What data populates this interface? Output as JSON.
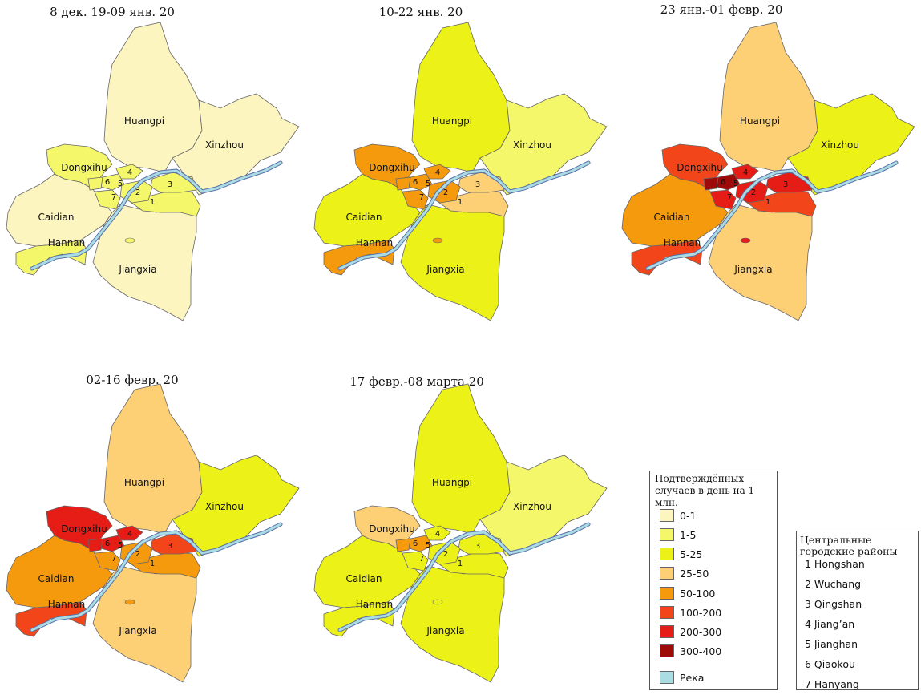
{
  "panels": [
    {
      "title": "8 дек. 19-09 янв. 20",
      "fills": {
        "huangpi": "#fdf5c0",
        "xinzhou": "#fdf5c0",
        "dongxihu": "#f4f76a",
        "caidian": "#fdf5c0",
        "hannan": "#f4f76a",
        "jiangxia": "#fdf5c0",
        "c1": "#f4f76a",
        "c2": "#f4f76a",
        "c3": "#f4f76a",
        "c4": "#f4f76a",
        "c5": "#f4f76a",
        "c6": "#f4f76a",
        "c7": "#f4f76a"
      }
    },
    {
      "title": "10-22 янв. 20",
      "fills": {
        "huangpi": "#ecf217",
        "xinzhou": "#f4f76a",
        "dongxihu": "#f59a0d",
        "caidian": "#ecf217",
        "hannan": "#f59a0d",
        "jiangxia": "#ecf217",
        "c1": "#fdd076",
        "c2": "#f59a0d",
        "c3": "#fdd076",
        "c4": "#f59a0d",
        "c5": "#f59a0d",
        "c6": "#f59a0d",
        "c7": "#f59a0d"
      }
    },
    {
      "title": "23 янв.-01 февр. 20",
      "fills": {
        "huangpi": "#fdd076",
        "xinzhou": "#ecf217",
        "dongxihu": "#f2461a",
        "caidian": "#f59a0d",
        "hannan": "#f2461a",
        "jiangxia": "#fdd076",
        "c1": "#f2461a",
        "c2": "#e61d16",
        "c3": "#e61d16",
        "c4": "#e61d16",
        "c5": "#9e0a0a",
        "c6": "#9e0a0a",
        "c7": "#e61d16"
      }
    },
    {
      "title": "02-16 февр. 20",
      "fills": {
        "huangpi": "#fdd076",
        "xinzhou": "#ecf217",
        "dongxihu": "#e61d16",
        "caidian": "#f59a0d",
        "hannan": "#f2461a",
        "jiangxia": "#fdd076",
        "c1": "#f59a0d",
        "c2": "#f59a0d",
        "c3": "#f2461a",
        "c4": "#e61d16",
        "c5": "#e61d16",
        "c6": "#e61d16",
        "c7": "#f59a0d"
      }
    },
    {
      "title": "17 февр.-08 марта 20",
      "fills": {
        "huangpi": "#ecf217",
        "xinzhou": "#f4f76a",
        "dongxihu": "#fdd076",
        "caidian": "#ecf217",
        "hannan": "#ecf217",
        "jiangxia": "#ecf217",
        "c1": "#ecf217",
        "c2": "#ecf217",
        "c3": "#ecf217",
        "c4": "#ecf217",
        "c5": "#f59a0d",
        "c6": "#f59a0d",
        "c7": "#ecf217"
      }
    }
  ],
  "region_labels": {
    "huangpi": "Huangpi",
    "xinzhou": "Xinzhou",
    "dongxihu": "Dongxihu",
    "caidian": "Caidian",
    "hannan": "Hannan",
    "jiangxia": "Jiangxia"
  },
  "central_numbers": [
    "1",
    "2",
    "3",
    "4",
    "5",
    "6",
    "7"
  ],
  "legend": {
    "title": "Подтверждённых случаев в день на 1 млн.",
    "items": [
      {
        "label": "0-1",
        "color": "#fdf5c0"
      },
      {
        "label": "1-5",
        "color": "#f4f76a"
      },
      {
        "label": "5-25",
        "color": "#ecf217"
      },
      {
        "label": "25-50",
        "color": "#fdd076"
      },
      {
        "label": "50-100",
        "color": "#f59a0d"
      },
      {
        "label": "100-200",
        "color": "#f2461a"
      },
      {
        "label": "200-300",
        "color": "#e61d16"
      },
      {
        "label": "300-400",
        "color": "#9e0a0a"
      }
    ],
    "river": {
      "label": "Река",
      "color": "#a9dce3"
    }
  },
  "districts": {
    "title": "Центральные городские районы",
    "items": [
      "1 Hongshan",
      "2 Wuchang",
      "3 Qingshan",
      "4 Jiang’an",
      "5 Jianghan",
      "6 Qiaokou",
      "7 Hanyang"
    ]
  }
}
